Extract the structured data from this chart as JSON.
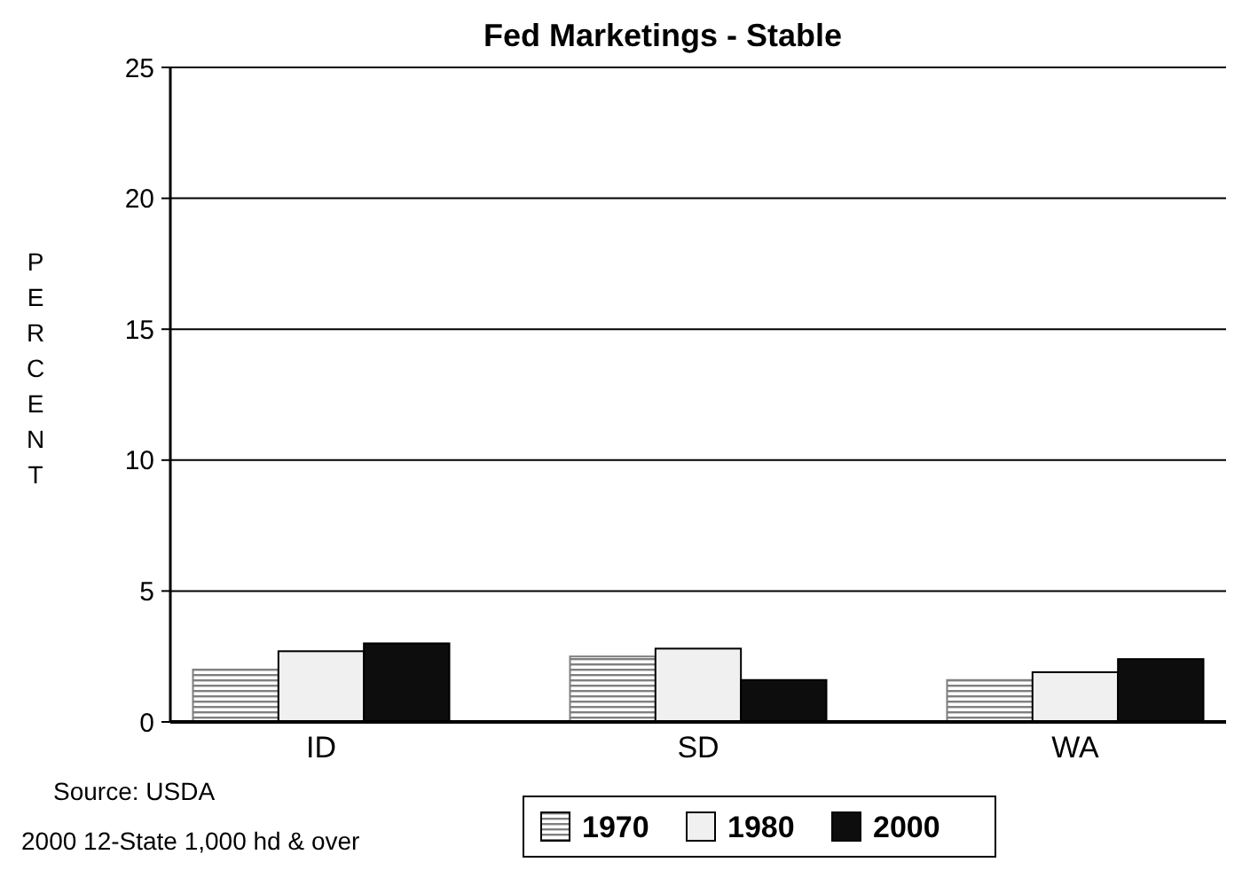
{
  "chart_data": {
    "type": "bar",
    "title": "Fed Marketings - Stable",
    "ylabel": "PERCENT",
    "categories": [
      "ID",
      "SD",
      "WA"
    ],
    "series": [
      {
        "name": "1970",
        "color": "#7f7f7f",
        "values": [
          2.0,
          2.5,
          1.6
        ]
      },
      {
        "name": "1980",
        "color": "#f0f0f0",
        "values": [
          2.7,
          2.8,
          1.9
        ]
      },
      {
        "name": "2000",
        "color": "#0d0d0d",
        "values": [
          3.0,
          1.6,
          2.4
        ]
      }
    ],
    "ylim": [
      0,
      25
    ],
    "yticks": [
      0,
      5,
      10,
      15,
      20,
      25
    ],
    "grid": "y",
    "legend": "bottom",
    "annotations": [
      "Source: USDA",
      "2000 12-State 1,000 hd & over"
    ]
  }
}
